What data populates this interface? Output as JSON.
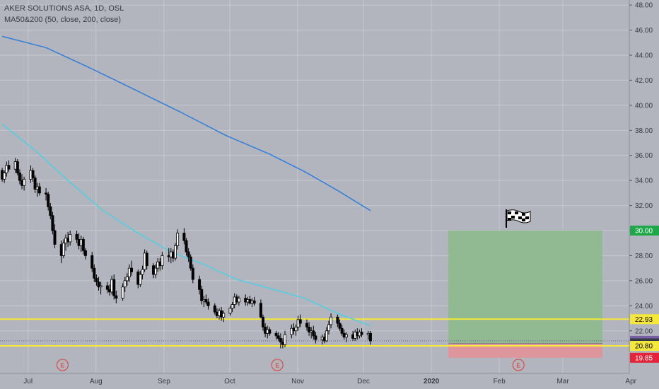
{
  "legend": {
    "symbol_line": "AKER SOLUTIONS ASA, 1D, OSL",
    "indicator_line": "MA50&200 (50, close, 200, close)"
  },
  "chart_data": {
    "type": "candlestick",
    "colors": {
      "background": "#b2b5be",
      "grid": "#c6c9d0",
      "candle": "#000000",
      "ma50": "#4dd0e1",
      "ma200": "#2f7fd8",
      "level_lines": "#f5e83a",
      "target_zone": "#8fba8f",
      "stop_zone": "#e0959b",
      "target_label": "#1fa84a",
      "stop_label": "#e5233b",
      "current_label": "#7a5fa8",
      "dark_label": "#363a45"
    },
    "y_axis": {
      "range": [
        18.6,
        48.4
      ],
      "ticks": [
        "48.00",
        "46.00",
        "44.00",
        "42.00",
        "40.00",
        "38.00",
        "36.00",
        "34.00",
        "32.00",
        "30.00",
        "28.00",
        "26.00",
        "24.00",
        "22.00"
      ],
      "labels": [
        {
          "text": "30.00",
          "value": 30.0,
          "style": "target"
        },
        {
          "text": "22.93",
          "value": 22.93,
          "style": "level"
        },
        {
          "text": "21.20",
          "value": 21.2,
          "style": "current"
        },
        {
          "text": "21.00",
          "value": 21.0,
          "style": "dark"
        },
        {
          "text": "20.80",
          "value": 20.8,
          "style": "level"
        },
        {
          "text": "19.85",
          "value": 19.85,
          "style": "stop"
        }
      ]
    },
    "x_axis": {
      "labels": [
        "Jul",
        "Aug",
        "Sep",
        "Oct",
        "Nov",
        "Dec",
        "2020",
        "Feb",
        "Mar",
        "Apr"
      ],
      "bold": [
        "2020"
      ]
    },
    "horizontal_lines": [
      22.93,
      20.8
    ],
    "current_price": 21.2,
    "position": {
      "entry": 21.0,
      "target": 30.0,
      "stop": 19.85,
      "start": "2020-01-18",
      "end": "2020-03-27"
    },
    "earnings_markers": [
      "2019-07-18",
      "2019-10-24",
      "2020-02-11"
    ],
    "earnings_glyph": "E",
    "flag_icon": "checkered-flag",
    "ma200": [
      [
        "2019-06-25",
        45.5
      ],
      [
        "2019-07-15",
        44.6
      ],
      [
        "2019-08-05",
        42.9
      ],
      [
        "2019-08-25",
        41.2
      ],
      [
        "2019-09-15",
        39.4
      ],
      [
        "2019-10-05",
        37.6
      ],
      [
        "2019-10-25",
        36.1
      ],
      [
        "2019-11-10",
        34.7
      ],
      [
        "2019-11-25",
        33.2
      ],
      [
        "2019-12-10",
        31.6
      ]
    ],
    "ma50": [
      [
        "2019-06-25",
        38.5
      ],
      [
        "2019-07-10",
        36.4
      ],
      [
        "2019-07-25",
        34.0
      ],
      [
        "2019-08-10",
        31.6
      ],
      [
        "2019-08-25",
        29.9
      ],
      [
        "2019-09-10",
        28.3
      ],
      [
        "2019-09-25",
        27.3
      ],
      [
        "2019-10-10",
        26.1
      ],
      [
        "2019-10-25",
        25.4
      ],
      [
        "2019-11-10",
        24.6
      ],
      [
        "2019-11-25",
        23.4
      ],
      [
        "2019-12-10",
        22.4
      ]
    ],
    "ohlc": [
      [
        "2019-06-25",
        34.8,
        35.0,
        33.9,
        34.1
      ],
      [
        "2019-06-26",
        34.1,
        34.8,
        33.8,
        34.6
      ],
      [
        "2019-06-27",
        34.6,
        35.5,
        34.3,
        35.2
      ],
      [
        "2019-06-28",
        35.2,
        35.6,
        34.7,
        34.9
      ],
      [
        "2019-07-01",
        34.9,
        35.8,
        34.6,
        35.5
      ],
      [
        "2019-07-02",
        35.5,
        35.7,
        34.4,
        34.6
      ],
      [
        "2019-07-03",
        34.6,
        34.9,
        33.7,
        34.0
      ],
      [
        "2019-07-04",
        34.0,
        34.5,
        33.3,
        33.6
      ],
      [
        "2019-07-05",
        33.6,
        34.3,
        33.2,
        34.1
      ],
      [
        "2019-07-08",
        34.1,
        35.2,
        33.8,
        34.8
      ],
      [
        "2019-07-09",
        34.8,
        35.0,
        33.9,
        34.2
      ],
      [
        "2019-07-10",
        34.2,
        34.4,
        33.0,
        33.3
      ],
      [
        "2019-07-11",
        33.3,
        33.8,
        32.7,
        33.5
      ],
      [
        "2019-07-12",
        33.5,
        33.8,
        32.8,
        33.0
      ],
      [
        "2019-07-15",
        33.0,
        33.4,
        32.4,
        32.9
      ],
      [
        "2019-07-16",
        32.9,
        33.1,
        31.6,
        31.9
      ],
      [
        "2019-07-17",
        31.9,
        32.2,
        30.9,
        31.2
      ],
      [
        "2019-07-18",
        31.2,
        31.5,
        29.7,
        30.0
      ],
      [
        "2019-07-19",
        30.0,
        30.5,
        28.6,
        28.9
      ],
      [
        "2019-07-22",
        28.9,
        29.2,
        27.4,
        28.0
      ],
      [
        "2019-07-23",
        28.0,
        29.3,
        27.8,
        29.0
      ],
      [
        "2019-07-24",
        29.0,
        29.7,
        28.4,
        29.4
      ],
      [
        "2019-07-25",
        29.4,
        29.9,
        28.7,
        29.1
      ],
      [
        "2019-07-26",
        29.1,
        30.0,
        28.8,
        29.7
      ],
      [
        "2019-07-29",
        29.7,
        30.0,
        29.0,
        29.3
      ],
      [
        "2019-07-30",
        29.3,
        29.8,
        28.5,
        28.8
      ],
      [
        "2019-07-31",
        28.8,
        29.6,
        28.3,
        29.3
      ],
      [
        "2019-08-01",
        29.3,
        29.5,
        28.1,
        28.4
      ],
      [
        "2019-08-02",
        28.4,
        28.6,
        27.7,
        28.0
      ],
      [
        "2019-08-05",
        28.0,
        28.3,
        26.7,
        27.0
      ],
      [
        "2019-08-06",
        27.0,
        27.3,
        25.9,
        26.2
      ],
      [
        "2019-08-07",
        26.2,
        26.5,
        25.6,
        25.9
      ],
      [
        "2019-08-08",
        25.9,
        26.3,
        25.2,
        25.5
      ],
      [
        "2019-08-09",
        25.5,
        25.9,
        24.9,
        25.6
      ],
      [
        "2019-08-12",
        25.6,
        25.9,
        25.0,
        25.3
      ],
      [
        "2019-08-13",
        25.3,
        25.7,
        24.8,
        25.1
      ],
      [
        "2019-08-14",
        25.1,
        26.4,
        24.9,
        26.1
      ],
      [
        "2019-08-15",
        26.1,
        26.5,
        24.5,
        24.8
      ],
      [
        "2019-08-16",
        24.8,
        25.2,
        24.2,
        24.6
      ],
      [
        "2019-08-19",
        24.6,
        25.8,
        24.4,
        25.5
      ],
      [
        "2019-08-20",
        25.5,
        26.3,
        25.1,
        26.0
      ],
      [
        "2019-08-21",
        26.0,
        26.6,
        25.6,
        26.3
      ],
      [
        "2019-08-22",
        26.3,
        27.3,
        25.9,
        27.0
      ],
      [
        "2019-08-23",
        27.0,
        27.6,
        26.4,
        26.7
      ],
      [
        "2019-08-26",
        26.7,
        26.9,
        25.4,
        25.7
      ],
      [
        "2019-08-27",
        25.7,
        26.8,
        25.5,
        26.5
      ],
      [
        "2019-08-28",
        26.5,
        27.2,
        26.1,
        26.9
      ],
      [
        "2019-08-29",
        26.9,
        28.5,
        26.7,
        28.2
      ],
      [
        "2019-08-30",
        28.2,
        28.4,
        26.9,
        27.2
      ],
      [
        "2019-09-02",
        27.2,
        27.4,
        26.2,
        26.5
      ],
      [
        "2019-09-03",
        26.5,
        27.3,
        26.2,
        27.0
      ],
      [
        "2019-09-04",
        27.0,
        27.8,
        26.7,
        27.5
      ],
      [
        "2019-09-05",
        27.5,
        27.8,
        26.8,
        27.2
      ],
      [
        "2019-09-06",
        27.2,
        28.3,
        26.9,
        28.0
      ],
      [
        "2019-09-09",
        28.0,
        28.6,
        27.5,
        27.9
      ],
      [
        "2019-09-10",
        27.9,
        28.6,
        27.4,
        28.3
      ],
      [
        "2019-09-11",
        28.3,
        28.5,
        27.5,
        27.8
      ],
      [
        "2019-09-12",
        27.8,
        29.0,
        27.6,
        28.8
      ],
      [
        "2019-09-13",
        28.8,
        30.1,
        28.5,
        29.8
      ],
      [
        "2019-09-16",
        29.8,
        30.2,
        28.9,
        29.2
      ],
      [
        "2019-09-17",
        29.2,
        29.4,
        28.0,
        28.3
      ],
      [
        "2019-09-18",
        28.3,
        28.6,
        27.5,
        27.9
      ],
      [
        "2019-09-19",
        27.9,
        28.1,
        26.8,
        27.0
      ],
      [
        "2019-09-20",
        27.0,
        27.3,
        25.8,
        26.1
      ],
      [
        "2019-09-23",
        26.1,
        26.4,
        24.9,
        25.3
      ],
      [
        "2019-09-24",
        25.3,
        25.6,
        24.1,
        24.4
      ],
      [
        "2019-09-25",
        24.4,
        24.8,
        23.9,
        24.5
      ],
      [
        "2019-09-26",
        24.5,
        24.9,
        24.1,
        24.3
      ],
      [
        "2019-09-27",
        24.3,
        24.6,
        23.7,
        24.0
      ],
      [
        "2019-09-30",
        24.0,
        24.2,
        23.3,
        23.5
      ],
      [
        "2019-10-01",
        23.5,
        23.8,
        23.0,
        23.2
      ],
      [
        "2019-10-02",
        23.2,
        23.8,
        22.9,
        23.6
      ],
      [
        "2019-10-03",
        23.6,
        23.9,
        22.8,
        23.1
      ],
      [
        "2019-10-04",
        23.1,
        23.6,
        22.7,
        23.4
      ],
      [
        "2019-10-07",
        23.4,
        24.0,
        23.2,
        23.8
      ],
      [
        "2019-10-08",
        23.8,
        24.3,
        23.5,
        24.1
      ],
      [
        "2019-10-09",
        24.1,
        25.0,
        23.8,
        24.7
      ],
      [
        "2019-10-10",
        24.7,
        24.9,
        24.1,
        24.3
      ],
      [
        "2019-10-11",
        24.3,
        24.8,
        24.0,
        24.6
      ],
      [
        "2019-10-14",
        24.6,
        24.9,
        24.0,
        24.3
      ],
      [
        "2019-10-15",
        24.3,
        24.7,
        24.0,
        24.5
      ],
      [
        "2019-10-16",
        24.5,
        24.8,
        24.1,
        24.2
      ],
      [
        "2019-10-17",
        24.2,
        24.6,
        23.9,
        24.4
      ],
      [
        "2019-10-18",
        24.4,
        24.7,
        24.0,
        24.2
      ],
      [
        "2019-10-21",
        24.2,
        24.5,
        23.0,
        23.1
      ],
      [
        "2019-10-22",
        23.1,
        23.3,
        22.0,
        22.3
      ],
      [
        "2019-10-23",
        22.3,
        22.6,
        21.5,
        21.8
      ],
      [
        "2019-10-24",
        21.8,
        22.4,
        21.4,
        22.1
      ],
      [
        "2019-10-25",
        22.1,
        22.3,
        21.6,
        21.8
      ],
      [
        "2019-10-28",
        21.8,
        22.0,
        21.3,
        21.6
      ],
      [
        "2019-10-29",
        21.6,
        21.9,
        21.2,
        21.4
      ],
      [
        "2019-10-30",
        21.4,
        21.8,
        20.6,
        21.1
      ],
      [
        "2019-10-31",
        21.1,
        21.4,
        20.6,
        20.9
      ],
      [
        "2019-11-01",
        20.9,
        22.0,
        20.7,
        21.7
      ],
      [
        "2019-11-04",
        21.7,
        22.5,
        21.4,
        22.2
      ],
      [
        "2019-11-05",
        22.2,
        22.6,
        21.7,
        22.0
      ],
      [
        "2019-11-06",
        22.0,
        22.5,
        21.6,
        22.3
      ],
      [
        "2019-11-07",
        22.3,
        23.2,
        22.0,
        22.9
      ],
      [
        "2019-11-08",
        22.9,
        23.3,
        22.3,
        22.6
      ],
      [
        "2019-11-11",
        22.6,
        22.9,
        22.0,
        22.3
      ],
      [
        "2019-11-12",
        22.3,
        22.7,
        21.6,
        21.9
      ],
      [
        "2019-11-13",
        21.9,
        22.3,
        21.4,
        22.0
      ],
      [
        "2019-11-14",
        22.0,
        22.4,
        21.3,
        21.6
      ],
      [
        "2019-11-15",
        21.6,
        21.9,
        21.0,
        21.3
      ],
      [
        "2019-11-18",
        21.3,
        21.7,
        20.9,
        21.5
      ],
      [
        "2019-11-19",
        21.5,
        21.8,
        21.0,
        21.2
      ],
      [
        "2019-11-20",
        21.2,
        22.3,
        21.1,
        22.0
      ],
      [
        "2019-11-21",
        22.0,
        22.8,
        21.7,
        22.5
      ],
      [
        "2019-11-22",
        22.5,
        23.4,
        22.2,
        23.1
      ],
      [
        "2019-11-25",
        23.1,
        23.3,
        22.3,
        22.6
      ],
      [
        "2019-11-26",
        22.6,
        22.9,
        22.0,
        22.2
      ],
      [
        "2019-11-27",
        22.2,
        22.5,
        21.6,
        21.8
      ],
      [
        "2019-11-28",
        21.8,
        22.1,
        21.3,
        21.5
      ],
      [
        "2019-11-29",
        21.5,
        21.9,
        21.1,
        21.7
      ],
      [
        "2019-12-02",
        21.7,
        22.0,
        21.2,
        21.4
      ],
      [
        "2019-12-03",
        21.4,
        22.1,
        21.2,
        21.9
      ],
      [
        "2019-12-04",
        21.9,
        22.2,
        21.3,
        21.6
      ],
      [
        "2019-12-05",
        21.6,
        22.1,
        21.4,
        21.9
      ],
      [
        "2019-12-06",
        21.9,
        22.2,
        21.5,
        21.7
      ],
      [
        "2019-12-09",
        21.7,
        22.0,
        21.3,
        21.8
      ],
      [
        "2019-12-10",
        21.8,
        22.0,
        20.9,
        21.2
      ]
    ]
  }
}
